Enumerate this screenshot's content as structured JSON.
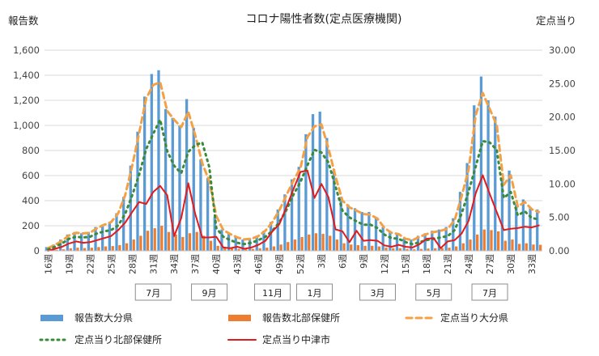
{
  "chart_data": {
    "type": "bar+line",
    "title": "コロナ陽性者数(定点医療機関)",
    "ylabel": "報告数",
    "y2label": "定点当り",
    "ylim": [
      0,
      1600
    ],
    "y2lim": [
      0,
      30
    ],
    "yticks": [
      "0",
      "200",
      "400",
      "600",
      "800",
      "1,000",
      "1,200",
      "1,400",
      "1,600"
    ],
    "y2ticks": [
      "0.00",
      "5.00",
      "10.00",
      "15.00",
      "20.00",
      "25.00",
      "30.00"
    ],
    "grid": true,
    "legend_position": "bottom",
    "x": [
      16,
      17,
      18,
      19,
      20,
      21,
      22,
      23,
      24,
      25,
      26,
      27,
      28,
      29,
      30,
      31,
      32,
      33,
      34,
      35,
      36,
      37,
      38,
      39,
      40,
      41,
      42,
      43,
      44,
      45,
      46,
      47,
      48,
      49,
      50,
      51,
      52,
      1,
      2,
      3,
      4,
      5,
      6,
      7,
      8,
      9,
      10,
      11,
      12,
      13,
      14,
      15,
      16,
      17,
      18,
      19,
      20,
      21,
      22,
      23,
      24,
      25,
      26,
      27,
      28,
      29,
      30,
      31,
      32,
      33,
      34
    ],
    "xtick_labels": [
      "16週",
      "19週",
      "22週",
      "25週",
      "28週",
      "31週",
      "34週",
      "37週",
      "40週",
      "43週",
      "46週",
      "49週",
      "52週",
      "3週",
      "6週",
      "9週",
      "12週",
      "15週",
      "18週",
      "21週",
      "24週",
      "27週",
      "30週",
      "33週"
    ],
    "month_labels": [
      "7月",
      "9月",
      "11月",
      "1月",
      "3月",
      "5月",
      "7月"
    ],
    "series": [
      {
        "name": "報告数大分県",
        "type": "bar",
        "axis": "left",
        "color": "#5b9bd5",
        "values": [
          30,
          50,
          90,
          130,
          150,
          140,
          150,
          190,
          210,
          230,
          300,
          430,
          680,
          950,
          1230,
          1410,
          1440,
          1130,
          1060,
          1000,
          1210,
          980,
          730,
          580,
          270,
          170,
          140,
          110,
          90,
          100,
          120,
          160,
          230,
          330,
          450,
          570,
          670,
          930,
          1090,
          1110,
          900,
          650,
          430,
          370,
          340,
          310,
          310,
          270,
          190,
          150,
          140,
          100,
          90,
          120,
          140,
          160,
          170,
          190,
          260,
          470,
          700,
          1160,
          1390,
          1200,
          1070,
          560,
          640,
          370,
          410,
          350,
          330
        ]
      },
      {
        "name": "報告数北部保健所",
        "type": "bar",
        "axis": "left",
        "color": "#ed7d31",
        "values": [
          5,
          8,
          12,
          20,
          25,
          22,
          25,
          30,
          35,
          38,
          45,
          60,
          90,
          120,
          160,
          180,
          200,
          150,
          130,
          110,
          140,
          150,
          120,
          80,
          40,
          25,
          20,
          15,
          12,
          15,
          20,
          25,
          35,
          50,
          70,
          90,
          110,
          130,
          140,
          135,
          120,
          90,
          60,
          50,
          45,
          40,
          40,
          35,
          25,
          20,
          20,
          15,
          12,
          15,
          18,
          20,
          22,
          25,
          35,
          60,
          90,
          130,
          170,
          165,
          155,
          80,
          90,
          55,
          60,
          50,
          48
        ]
      },
      {
        "name": "定点当り大分県",
        "type": "line",
        "axis": "right",
        "color": "#f4a044",
        "dash": "7,5",
        "values": [
          0.4,
          0.9,
          1.5,
          2.3,
          2.7,
          2.6,
          2.7,
          3.4,
          3.9,
          4.3,
          5.6,
          8.3,
          12.7,
          17.6,
          22.8,
          24.8,
          25.2,
          20.9,
          19.6,
          18.5,
          20.8,
          17.3,
          13.1,
          10.4,
          5.2,
          3.1,
          2.5,
          2.0,
          1.7,
          1.8,
          2.2,
          3.0,
          4.3,
          6.1,
          8.3,
          10.5,
          12.4,
          17.0,
          18.6,
          18.9,
          15.3,
          11.1,
          7.5,
          6.5,
          6.0,
          5.5,
          5.4,
          4.8,
          3.4,
          2.7,
          2.5,
          1.8,
          1.6,
          2.1,
          2.5,
          2.8,
          3.0,
          3.3,
          4.6,
          8.2,
          12.2,
          20.3,
          23.6,
          21.2,
          18.8,
          9.9,
          11.3,
          6.6,
          7.3,
          6.2,
          5.8
        ]
      },
      {
        "name": "定点当り北部保健所",
        "type": "line",
        "axis": "right",
        "color": "#3a8a3a",
        "dash": "2,5",
        "values": [
          0.2,
          0.6,
          1.1,
          1.8,
          2.1,
          2.0,
          2.1,
          2.6,
          2.9,
          3.1,
          3.8,
          5.5,
          8.3,
          11.4,
          15.2,
          17.5,
          19.6,
          14.9,
          12.7,
          11.6,
          14.8,
          15.8,
          16.2,
          12.5,
          3.4,
          2.1,
          1.6,
          1.2,
          1.0,
          1.2,
          1.6,
          2.1,
          3.0,
          4.3,
          6.1,
          8.4,
          10.3,
          12.8,
          15.1,
          14.7,
          13.2,
          9.6,
          6.0,
          5.0,
          4.4,
          3.9,
          3.9,
          3.4,
          2.4,
          1.9,
          1.8,
          1.3,
          1.0,
          1.3,
          1.6,
          1.8,
          2.0,
          2.2,
          3.1,
          5.6,
          8.9,
          12.6,
          16.4,
          16.2,
          15.1,
          7.9,
          8.8,
          5.3,
          5.9,
          4.9,
          4.7
        ]
      },
      {
        "name": "定点当り中津市",
        "type": "line",
        "axis": "right",
        "color": "#e31a1c",
        "dash": "",
        "values": [
          0.0,
          0.3,
          0.6,
          1.1,
          1.4,
          1.2,
          1.3,
          1.6,
          1.9,
          2.2,
          3.1,
          4.2,
          5.8,
          7.3,
          7.0,
          8.8,
          9.7,
          8.3,
          2.2,
          4.9,
          10.1,
          5.5,
          2.0,
          2.0,
          2.1,
          0.5,
          0.4,
          0.6,
          0.3,
          0.5,
          0.9,
          1.5,
          2.9,
          4.0,
          6.5,
          9.2,
          11.8,
          12.0,
          7.9,
          10.0,
          8.0,
          3.2,
          2.9,
          1.3,
          3.0,
          1.5,
          1.6,
          1.5,
          0.8,
          0.6,
          0.9,
          0.6,
          0.5,
          1.0,
          1.8,
          1.9,
          0.4,
          1.4,
          1.6,
          2.6,
          4.5,
          8.6,
          11.3,
          8.5,
          5.8,
          3.1,
          3.3,
          3.4,
          3.6,
          3.5,
          3.8
        ]
      }
    ]
  }
}
